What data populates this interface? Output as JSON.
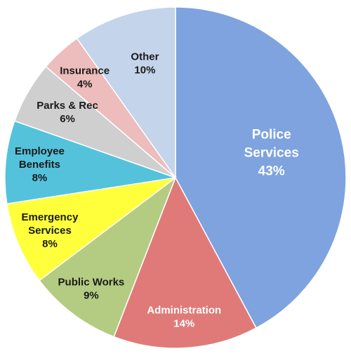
{
  "chart_data": {
    "type": "pie",
    "title": "",
    "slices": [
      {
        "label": "Police\nServices",
        "pct_label": "43%",
        "value": 43,
        "color": "#7ea3df"
      },
      {
        "label": "Administration",
        "pct_label": "14%",
        "value": 14,
        "color": "#e07a78"
      },
      {
        "label": "Public Works",
        "pct_label": "9%",
        "value": 9,
        "color": "#b4cc82"
      },
      {
        "label": "Emergency\nServices",
        "pct_label": "8%",
        "value": 8,
        "color": "#ffff3c"
      },
      {
        "label": "Employee\nBenefits",
        "pct_label": "8%",
        "value": 8,
        "color": "#55c2dc"
      },
      {
        "label": "Parks & Rec",
        "pct_label": "6%",
        "value": 6,
        "color": "#cfcfcf"
      },
      {
        "label": "Insurance",
        "pct_label": "4%",
        "value": 4,
        "color": "#edbcbc"
      },
      {
        "label": "Other",
        "pct_label": "10%",
        "value": 10,
        "color": "#c4d4ea"
      }
    ],
    "start_angle": "12 o'clock",
    "direction": "clockwise",
    "legend": "none",
    "label_colors": [
      "#ffffff",
      "#ffffff",
      "#1a1a1a",
      "#1a1a1a",
      "#1a1a1a",
      "#1a1a1a",
      "#1a1a1a",
      "#1a1a1a"
    ]
  }
}
